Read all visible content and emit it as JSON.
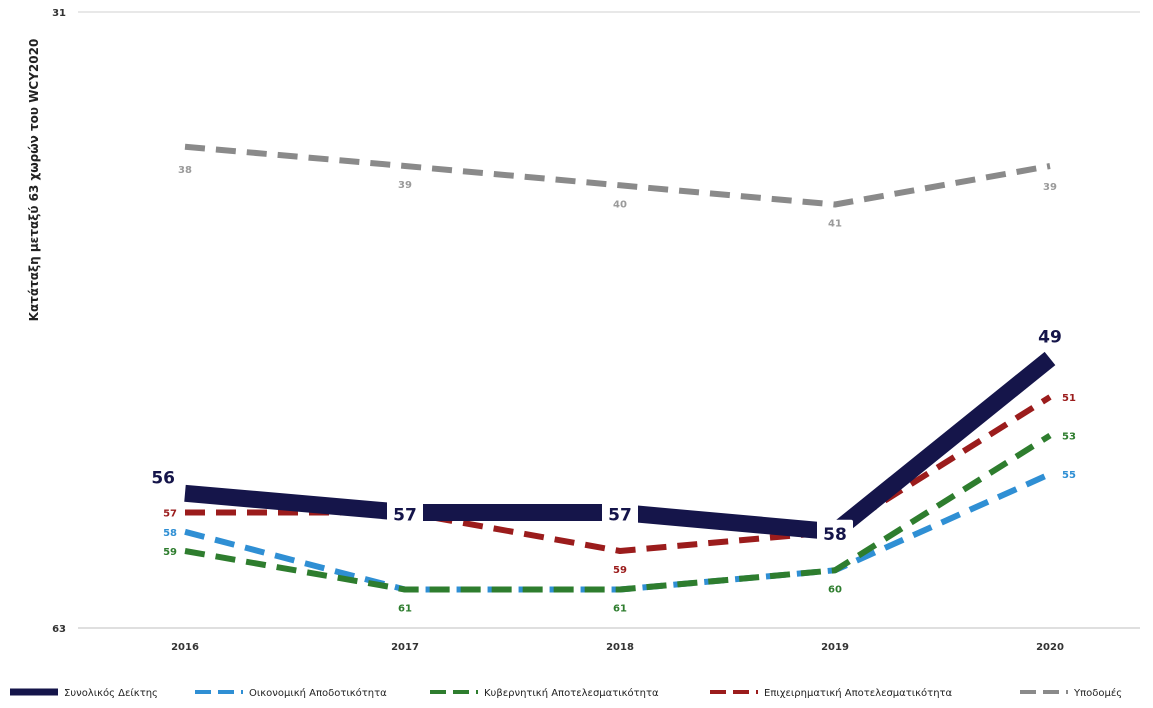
{
  "chart_data": {
    "type": "line",
    "ylabel": "Κατάταξη μεταξύ 63 χωρών του WCY2020",
    "y_axis": {
      "inverted": true,
      "min": 31,
      "max": 63,
      "ticks": [
        "31",
        "63"
      ]
    },
    "categories": [
      "2016",
      "2017",
      "2018",
      "2019",
      "2020"
    ],
    "grid": false,
    "legend_position": "bottom",
    "series": [
      {
        "name": "Συνολικός Δείκτης",
        "values": [
          56,
          57,
          57,
          58,
          49
        ],
        "labels": [
          "56",
          "57",
          "57",
          "58",
          "49"
        ],
        "color": "#15154a",
        "style": "solid-thick"
      },
      {
        "name": "Οικονομική Αποδοτικότητα",
        "values": [
          58,
          61,
          61,
          60,
          55
        ],
        "labels": [
          "58",
          "",
          "",
          "",
          "55"
        ],
        "color": "#2f8fd4",
        "style": "dashed"
      },
      {
        "name": "Κυβερνητική Αποτελεσματικότητα",
        "values": [
          59,
          61,
          61,
          60,
          53
        ],
        "labels": [
          "59",
          "61",
          "61",
          "60",
          "53"
        ],
        "color": "#2e7d2e",
        "style": "dashed"
      },
      {
        "name": "Επιχειρηματική Αποτελεσματικότητα",
        "values": [
          57,
          57,
          59,
          58,
          51
        ],
        "labels": [
          "57",
          "",
          "59",
          "",
          "51"
        ],
        "color": "#9b1c1c",
        "style": "dashed"
      },
      {
        "name": "Υποδομές",
        "values": [
          38,
          39,
          40,
          41,
          39
        ],
        "labels": [
          "38",
          "39",
          "40",
          "41",
          "39"
        ],
        "color": "#8a8a8a",
        "style": "dashed"
      }
    ]
  }
}
